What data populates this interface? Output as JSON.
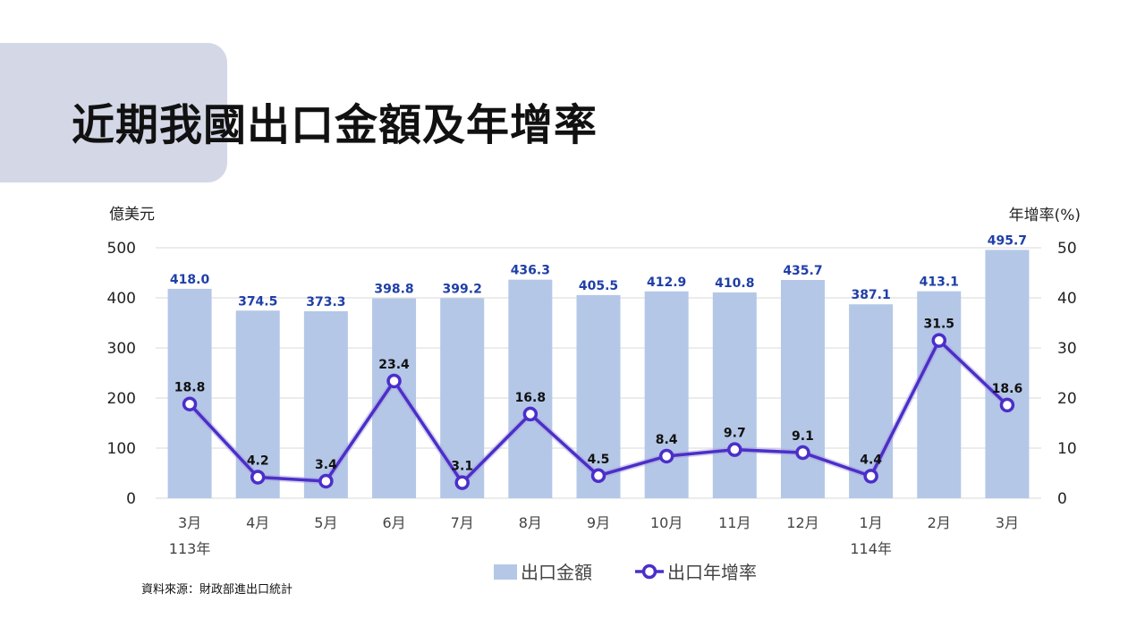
{
  "slide": {
    "title": "近期我國出口金額及年增率",
    "source": "資料來源：財政部進出口統計"
  },
  "chart_data": {
    "type": "bar",
    "categories": [
      "3月",
      "4月",
      "5月",
      "6月",
      "7月",
      "8月",
      "9月",
      "10月",
      "11月",
      "12月",
      "1月",
      "2月",
      "3月"
    ],
    "year_labels": [
      {
        "index": 0,
        "text": "113年"
      },
      {
        "index": 10,
        "text": "114年"
      }
    ],
    "series": [
      {
        "name": "出口金額",
        "type": "bar",
        "axis": "left",
        "values": [
          418.0,
          374.5,
          373.3,
          398.8,
          399.2,
          436.3,
          405.5,
          412.9,
          410.8,
          435.7,
          387.1,
          413.1,
          495.7
        ],
        "labels": [
          "418.0",
          "374.5",
          "373.3",
          "398.8",
          "399.2",
          "436.3",
          "405.5",
          "412.9",
          "410.8",
          "435.7",
          "387.1",
          "413.1",
          "495.7"
        ]
      },
      {
        "name": "出口年增率",
        "type": "line",
        "axis": "right",
        "values": [
          18.8,
          4.2,
          3.4,
          23.4,
          3.1,
          16.8,
          4.5,
          8.4,
          9.7,
          9.1,
          4.4,
          31.5,
          18.6
        ],
        "labels": [
          "18.8",
          "4.2",
          "3.4",
          "23.4",
          "3.1",
          "16.8",
          "4.5",
          "8.4",
          "9.7",
          "9.1",
          "4.4",
          "31.5",
          "18.6"
        ]
      }
    ],
    "y_left": {
      "label": "億美元",
      "min": 0,
      "max": 500,
      "ticks": [
        "0",
        "100",
        "200",
        "300",
        "400",
        "500"
      ]
    },
    "y_right": {
      "label": "年增率(%)",
      "min": 0,
      "max": 50,
      "ticks": [
        "0",
        "10",
        "20",
        "30",
        "40",
        "50"
      ]
    },
    "grid": true,
    "legend_position": "bottom",
    "colors": {
      "bar": "#b4c7e7",
      "bar_label": "#1f3fa8",
      "line": "#4b2fc9",
      "point_fill": "#ffffff",
      "line_label": "#111111",
      "grid": "#d9d9d9"
    }
  }
}
